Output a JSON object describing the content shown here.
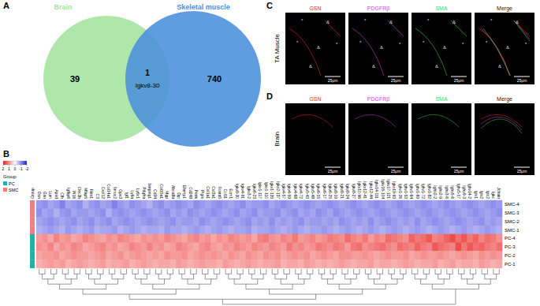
{
  "panel_labels": [
    "A",
    "B",
    "C",
    "D"
  ],
  "venn": {
    "sets": [
      {
        "name": "Brain",
        "color": "#a6e3a1",
        "only": 39
      },
      {
        "name": "Skeletal muscle",
        "color": "#4a8fdc",
        "only": 740
      }
    ],
    "overlap": {
      "count": 1,
      "label": "Igkv8-30"
    }
  },
  "chart_data": {
    "type": "heatmap",
    "x": [
      "Dcn",
      "Gsn",
      "Lum",
      "Apod",
      "Cfh",
      "Igfbp6",
      "Pi16",
      "Clec3b",
      "Mfap5",
      "Fbln1",
      "C3",
      "Cxcl12",
      "Col14a1",
      "Smoc2",
      "Gpx3",
      "Igf1",
      "Ly6a",
      "Ly6c1",
      "Pdgfra",
      "Serping1",
      "Cd34",
      "Col15a1",
      "Mgp",
      "Abca8a",
      "Dpt",
      "Efemp1",
      "Cd248",
      "Penk",
      "Ptgis",
      "Col1a1",
      "Col3a1",
      "Scara5",
      "Ccl11",
      "Ecm1",
      "Igkv8-30",
      "Igkv4-91",
      "Igkv3-2",
      "Igkv6-23",
      "Igkv1-117",
      "Igkv1-110",
      "Igkv1-135",
      "Igkv2-137",
      "Igkv4-57",
      "Igkv4-59",
      "Igkv4-68",
      "Igkv4-72",
      "Igkv5-43",
      "Igkv5-48",
      "Igkv6-15",
      "Igkv6-17",
      "Igkv6-25",
      "Igkv8-19",
      "Igkv8-21",
      "Igkv8-24",
      "Igkv8-27",
      "Igkv10-96",
      "Igkv12-41",
      "Igkv12-44",
      "Igkv14-111",
      "Igkv16-104",
      "Igkv17-121",
      "Igkv19-93",
      "Ighv1-26",
      "Ighv1-53",
      "Ighv1-64",
      "Ighv1-69",
      "Ighv1-72",
      "Ighv1-82",
      "Ighv2-2",
      "Ighv2-9",
      "Ighv3-6",
      "Ighv5-6",
      "Ighv5-17",
      "Ighv9-3",
      "Ighv14-2",
      "Iglv1",
      "Iglv2",
      "Iglc2",
      "Igkc",
      "Jchain"
    ],
    "y": [
      "SMC-4",
      "SMC-3",
      "SMC-2",
      "SMC-1",
      "PC-4",
      "PC-3",
      "PC-2",
      "PC-1"
    ],
    "values": [
      [
        -0.9,
        -1.0,
        -0.8,
        -0.9,
        -1.1,
        -0.8,
        -0.9,
        -1.0,
        -0.7,
        -0.9,
        -1.0,
        -0.8,
        -0.9,
        -1.1,
        -0.9,
        -0.8,
        -1.0,
        -0.9,
        -0.8,
        -0.7,
        -0.9,
        -1.0,
        -0.8,
        -0.9,
        -1.0,
        -0.9,
        -0.8,
        -1.0,
        -0.9,
        -0.8,
        -0.9,
        -1.0,
        -0.9,
        -0.8,
        -0.9,
        -1.0,
        -0.8,
        -0.9,
        -0.9,
        -1.0,
        -0.8,
        -0.9,
        -1.0,
        -0.9,
        -0.8,
        -0.9,
        -1.0,
        -0.9,
        -0.8,
        -0.9,
        -1.0,
        -0.9,
        -0.8,
        -0.9,
        -1.0,
        -0.9,
        -0.8,
        -0.9,
        -1.0,
        -0.9,
        -0.8,
        -0.9,
        -1.0,
        -0.9,
        -0.8,
        -0.9,
        -1.0,
        -0.9,
        -0.8,
        -0.9,
        -1.0,
        -0.9,
        -0.8,
        -0.9,
        -1.0,
        -0.9,
        -0.8,
        -0.9,
        -1.0,
        -0.9
      ],
      [
        -1.0,
        -0.8,
        -0.9,
        -0.7,
        -0.9,
        -1.0,
        -0.8,
        -0.9,
        -0.9,
        -0.8,
        -0.9,
        -1.0,
        -0.7,
        -0.9,
        -1.0,
        -0.9,
        -0.8,
        -0.9,
        -1.0,
        -0.9,
        -0.8,
        -0.9,
        -1.0,
        -0.8,
        -0.9,
        -0.8,
        -1.0,
        -0.9,
        -0.8,
        -0.9,
        -1.0,
        -0.9,
        -0.8,
        -0.9,
        -1.0,
        -0.8,
        -0.9,
        -1.0,
        -0.8,
        -0.9,
        -0.9,
        -1.0,
        -0.8,
        -0.9,
        -1.0,
        -0.8,
        -0.9,
        -0.8,
        -1.0,
        -0.9,
        -0.8,
        -1.0,
        -0.9,
        -0.8,
        -0.9,
        -1.0,
        -0.9,
        -0.8,
        -0.9,
        -1.0,
        -0.9,
        -0.8,
        -0.9,
        -1.0,
        -0.9,
        -0.8,
        -0.9,
        -1.0,
        -0.9,
        -0.8,
        -0.9,
        -1.0,
        -0.9,
        -0.8,
        -0.9,
        -1.0,
        -0.9,
        -0.8,
        -0.9,
        -1.0
      ],
      [
        -0.8,
        -0.9,
        -1.0,
        -0.9,
        -0.8,
        -0.9,
        -1.0,
        -0.8,
        -0.9,
        -1.0,
        -0.8,
        -0.9,
        -1.0,
        -0.8,
        -0.9,
        -1.0,
        -0.9,
        -0.8,
        -0.9,
        -1.0,
        -0.9,
        -0.8,
        -0.9,
        -1.0,
        -0.8,
        -0.9,
        -0.9,
        -0.8,
        -1.0,
        -0.9,
        -0.8,
        -0.9,
        -1.0,
        -0.9,
        -0.8,
        -0.9,
        -1.0,
        -0.8,
        -0.9,
        -0.8,
        -1.0,
        -0.8,
        -0.9,
        -0.8,
        -0.9,
        -1.0,
        -0.8,
        -0.9,
        -0.9,
        -0.8,
        -0.9,
        -0.8,
        -1.0,
        -0.9,
        -0.8,
        -0.9,
        -0.8,
        -1.0,
        -0.8,
        -0.9,
        -1.0,
        -0.9,
        -0.8,
        -0.9,
        -0.8,
        -1.0,
        -0.8,
        -0.9,
        -1.0,
        -0.9,
        -0.8,
        -0.9,
        -1.0,
        -0.9,
        -0.8,
        -0.9,
        -1.0,
        -0.8,
        -0.9,
        -0.8
      ],
      [
        -0.7,
        -0.8,
        -0.9,
        -0.8,
        -0.7,
        -0.9,
        -0.8,
        -0.7,
        -0.8,
        -0.9,
        -0.7,
        -0.8,
        -0.8,
        -0.9,
        -0.7,
        -0.8,
        -0.9,
        -0.8,
        -0.7,
        -0.8,
        -0.8,
        -0.7,
        -0.9,
        -0.8,
        -0.8,
        -0.7,
        -0.8,
        -0.9,
        -0.8,
        -0.7,
        -0.8,
        -0.9,
        -0.8,
        -0.7,
        -0.8,
        -0.8,
        -0.9,
        -0.7,
        -0.8,
        -0.8,
        -0.9,
        -0.8,
        -0.7,
        -0.8,
        -0.9,
        -0.8,
        -0.7,
        -0.8,
        -0.8,
        -0.9,
        -0.8,
        -0.7,
        -0.8,
        -0.9,
        -0.8,
        -0.7,
        -0.8,
        -0.9,
        -0.8,
        -0.7,
        -0.8,
        -0.9,
        -0.8,
        -0.7,
        -0.8,
        -0.9,
        -0.8,
        -0.7,
        -0.8,
        -0.9,
        -0.8,
        -0.7,
        -0.8,
        -0.9,
        -0.8,
        -0.7,
        -0.8,
        -0.9,
        -0.8,
        -0.7
      ],
      [
        0.9,
        1.0,
        0.8,
        1.1,
        0.9,
        1.0,
        0.8,
        0.9,
        1.1,
        1.0,
        0.9,
        0.8,
        1.0,
        0.9,
        1.1,
        1.0,
        0.9,
        0.8,
        1.0,
        0.9,
        1.0,
        0.9,
        1.1,
        1.0,
        0.9,
        0.8,
        1.0,
        1.1,
        0.9,
        1.0,
        0.8,
        1.0,
        0.9,
        1.1,
        1.0,
        0.9,
        1.0,
        0.8,
        1.1,
        1.2,
        1.0,
        0.9,
        1.1,
        1.0,
        1.2,
        0.9,
        1.0,
        1.1,
        0.9,
        1.0,
        1.2,
        1.1,
        1.0,
        1.3,
        1.1,
        1.0,
        1.2,
        0.9,
        1.1,
        1.0,
        1.3,
        1.2,
        1.1,
        1.0,
        1.4,
        1.2,
        1.3,
        1.5,
        1.1,
        1.2,
        1.4,
        1.6,
        1.3,
        1.5,
        1.2,
        1.4,
        1.1,
        1.3,
        1.2,
        1.0
      ],
      [
        1.0,
        0.9,
        1.1,
        0.8,
        1.0,
        0.9,
        1.1,
        1.0,
        0.8,
        0.9,
        1.0,
        1.1,
        0.9,
        1.0,
        0.8,
        0.9,
        1.1,
        1.0,
        0.9,
        1.1,
        0.9,
        1.0,
        0.8,
        0.9,
        1.1,
        1.0,
        0.9,
        0.8,
        1.0,
        1.1,
        0.9,
        0.8,
        1.0,
        0.9,
        1.1,
        1.0,
        0.9,
        1.1,
        1.0,
        0.9,
        1.1,
        1.0,
        0.9,
        1.2,
        1.0,
        1.1,
        0.9,
        1.0,
        1.2,
        1.1,
        1.0,
        1.2,
        1.1,
        0.9,
        1.2,
        1.3,
        1.0,
        1.1,
        1.2,
        1.3,
        1.1,
        1.0,
        1.3,
        1.2,
        1.1,
        1.4,
        1.2,
        1.1,
        1.5,
        1.3,
        1.2,
        1.1,
        1.6,
        1.2,
        1.5,
        1.3,
        1.4,
        1.2,
        1.1,
        1.3
      ],
      [
        0.8,
        0.9,
        0.9,
        1.0,
        0.8,
        0.9,
        1.0,
        0.9,
        0.9,
        0.8,
        0.9,
        1.0,
        0.8,
        0.9,
        1.0,
        0.8,
        0.9,
        1.0,
        0.9,
        0.8,
        0.9,
        0.8,
        1.0,
        0.9,
        0.9,
        1.0,
        0.8,
        0.9,
        1.0,
        0.9,
        1.0,
        0.9,
        0.8,
        1.0,
        0.9,
        0.8,
        1.0,
        0.9,
        0.8,
        1.0,
        0.9,
        1.0,
        0.8,
        0.9,
        1.0,
        0.9,
        1.0,
        0.8,
        0.9,
        1.0,
        0.9,
        0.8,
        1.0,
        1.0,
        0.9,
        0.9,
        1.0,
        0.9,
        0.8,
        0.9,
        1.0,
        0.9,
        0.9,
        1.0,
        0.8,
        0.9,
        1.0,
        0.9,
        0.9,
        1.0,
        0.9,
        0.8,
        0.9,
        1.0,
        0.9,
        0.8,
        1.0,
        0.9,
        1.0,
        0.9
      ],
      [
        0.7,
        0.8,
        0.9,
        0.8,
        0.9,
        0.7,
        0.8,
        0.9,
        0.8,
        0.7,
        0.8,
        0.9,
        0.7,
        0.8,
        0.8,
        0.9,
        0.7,
        0.8,
        0.9,
        0.8,
        0.7,
        0.8,
        0.8,
        0.7,
        0.9,
        0.8,
        0.7,
        0.8,
        0.9,
        0.8,
        0.8,
        0.7,
        0.9,
        0.8,
        0.7,
        0.8,
        0.9,
        0.8,
        0.7,
        0.8,
        0.8,
        0.9,
        0.7,
        0.8,
        0.8,
        0.7,
        0.9,
        0.8,
        0.7,
        0.8,
        0.7,
        0.8,
        0.9,
        0.8,
        0.7,
        0.8,
        0.8,
        0.9,
        0.7,
        0.8,
        0.8,
        0.7,
        0.8,
        0.9,
        0.8,
        0.7,
        0.8,
        0.8,
        0.9,
        0.7,
        0.8,
        0.9,
        0.7,
        0.8,
        0.8,
        0.7,
        0.9,
        0.8,
        0.7,
        0.8
      ]
    ],
    "colorbar": {
      "range": [
        -2,
        2
      ],
      "ticks": [
        2,
        1,
        0,
        -1,
        -2
      ],
      "colors": [
        "#1c1cd8",
        "#ffffff",
        "#e8201e"
      ]
    },
    "group": {
      "title": "Group",
      "names": [
        "PC",
        "SMC"
      ],
      "colors": [
        "#20b2aa",
        "#f08080"
      ],
      "rows": [
        "SMC",
        "SMC",
        "SMC",
        "SMC",
        "PC",
        "PC",
        "PC",
        "PC"
      ]
    }
  },
  "microscopy": {
    "channels": [
      {
        "name": "GSN",
        "color": "#ff2a2a"
      },
      {
        "name": "PDGFRβ",
        "color": "#e040e0"
      },
      {
        "name": "SMA",
        "color": "#3ee03e"
      },
      {
        "name": "Merge",
        "color": "#222222"
      }
    ],
    "rows": [
      {
        "name": "TA Muscle",
        "scale_bar": "25μm",
        "marks": [
          "*",
          "&"
        ]
      },
      {
        "name": "Brain",
        "scale_bar": "25μm",
        "marks": []
      }
    ]
  }
}
